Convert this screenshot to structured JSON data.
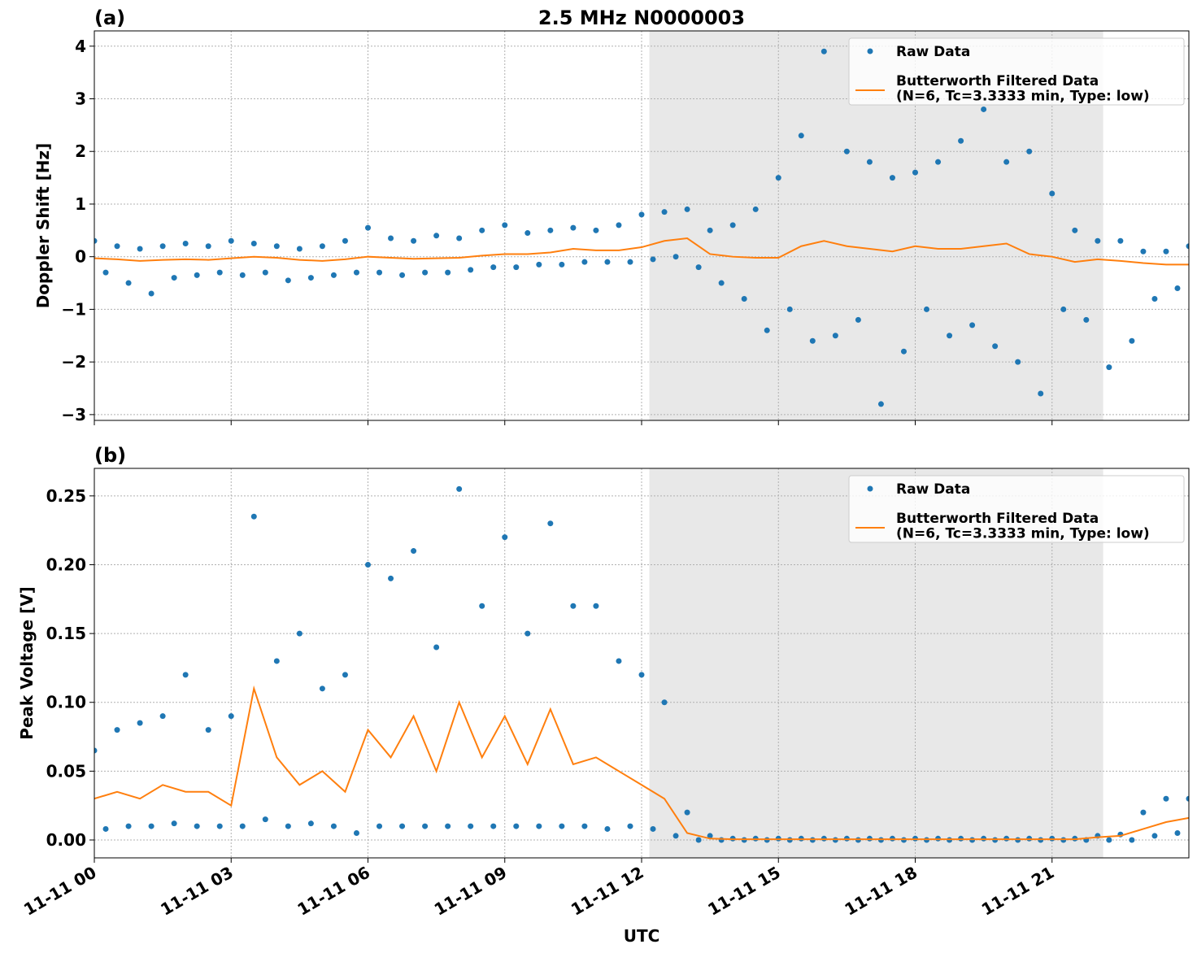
{
  "chart_data": [
    {
      "type": "line",
      "panel_label": "(a)",
      "title": "2.5 MHz N0000003",
      "ylabel": "Doppler Shift [Hz]",
      "xlim": [
        0,
        24
      ],
      "xticks": [
        0,
        3,
        6,
        9,
        12,
        15,
        18,
        21
      ],
      "ylim": [
        -3.11,
        4.29
      ],
      "yticks": [
        {
          "value": -3,
          "label": "−3"
        },
        {
          "value": -2,
          "label": "−2"
        },
        {
          "value": -1,
          "label": "−1"
        },
        0,
        1,
        2,
        3,
        4
      ],
      "grid": true,
      "legend": "upper right",
      "shaded_span": [
        12.17,
        22.12
      ],
      "shaded_color": "#e8e8e8",
      "series": [
        {
          "name": "Raw Data",
          "style": "markers",
          "color": "#1f77b4",
          "x": [
            0,
            0.25,
            0.5,
            0.75,
            1,
            1.25,
            1.5,
            1.75,
            2,
            2.25,
            2.5,
            2.75,
            3,
            3.25,
            3.5,
            3.75,
            4,
            4.25,
            4.5,
            4.75,
            5,
            5.25,
            5.5,
            5.75,
            6,
            6.25,
            6.5,
            6.75,
            7,
            7.25,
            7.5,
            7.75,
            8,
            8.25,
            8.5,
            8.75,
            9,
            9.25,
            9.5,
            9.75,
            10,
            10.25,
            10.5,
            10.75,
            11,
            11.25,
            11.5,
            11.75,
            12,
            12.25,
            12.5,
            12.75,
            13,
            13.25,
            13.5,
            13.75,
            14,
            14.25,
            14.5,
            14.75,
            15,
            15.25,
            15.5,
            15.75,
            16,
            16.25,
            16.5,
            16.75,
            17,
            17.25,
            17.5,
            17.75,
            18,
            18.25,
            18.5,
            18.75,
            19,
            19.25,
            19.5,
            19.75,
            20,
            20.25,
            20.5,
            20.75,
            21,
            21.25,
            21.5,
            21.75,
            22,
            22.25,
            22.5,
            22.75,
            23,
            23.25,
            23.5,
            23.75,
            24
          ],
          "values": [
            0.3,
            -0.3,
            0.2,
            -0.5,
            0.15,
            -0.7,
            0.2,
            -0.4,
            0.25,
            -0.35,
            0.2,
            -0.3,
            0.3,
            -0.35,
            0.25,
            -0.3,
            0.2,
            -0.45,
            0.15,
            -0.4,
            0.2,
            -0.35,
            0.3,
            -0.3,
            0.55,
            -0.3,
            0.35,
            -0.35,
            0.3,
            -0.3,
            0.4,
            -0.3,
            0.35,
            -0.25,
            0.5,
            -0.2,
            0.6,
            -0.2,
            0.45,
            -0.15,
            0.5,
            -0.15,
            0.55,
            -0.1,
            0.5,
            -0.1,
            0.6,
            -0.1,
            0.8,
            -0.05,
            0.85,
            0.0,
            0.9,
            -0.2,
            0.5,
            -0.5,
            0.6,
            -0.8,
            0.9,
            -1.4,
            1.5,
            -1.0,
            2.3,
            -1.6,
            3.9,
            -1.5,
            2.0,
            -1.2,
            1.8,
            -2.8,
            1.5,
            -1.8,
            1.6,
            -1.0,
            1.8,
            -1.5,
            2.2,
            -1.3,
            2.8,
            -1.7,
            1.8,
            -2.0,
            2.0,
            -2.6,
            1.2,
            -1.0,
            0.5,
            -1.2,
            0.3,
            -2.1,
            0.3,
            -1.6,
            0.1,
            -0.8,
            0.1,
            -0.6,
            0.2
          ]
        },
        {
          "name": "Butterworth Filtered Data\n(N=6, Tc=3.3333 min, Type: low)",
          "style": "line",
          "color": "#ff7f0e",
          "x": [
            0,
            0.5,
            1,
            1.5,
            2,
            2.5,
            3,
            3.5,
            4,
            4.5,
            5,
            5.5,
            6,
            6.5,
            7,
            7.5,
            8,
            8.5,
            9,
            9.5,
            10,
            10.5,
            11,
            11.5,
            12,
            12.5,
            13,
            13.5,
            14,
            14.5,
            15,
            15.5,
            16,
            16.5,
            17,
            17.5,
            18,
            18.5,
            19,
            19.5,
            20,
            20.5,
            21,
            21.5,
            22,
            22.5,
            23,
            23.5,
            24
          ],
          "values": [
            -0.03,
            -0.05,
            -0.08,
            -0.06,
            -0.05,
            -0.06,
            -0.03,
            0.0,
            -0.02,
            -0.06,
            -0.08,
            -0.05,
            0.0,
            -0.02,
            -0.04,
            -0.03,
            -0.02,
            0.02,
            0.05,
            0.05,
            0.08,
            0.15,
            0.12,
            0.12,
            0.18,
            0.3,
            0.35,
            0.05,
            0.0,
            -0.02,
            -0.02,
            0.2,
            0.3,
            0.2,
            0.15,
            0.1,
            0.2,
            0.15,
            0.15,
            0.2,
            0.25,
            0.05,
            0.0,
            -0.1,
            -0.05,
            -0.08,
            -0.12,
            -0.15,
            -0.15
          ]
        }
      ]
    },
    {
      "type": "line",
      "panel_label": "(b)",
      "ylabel": "Peak Voltage [V]",
      "xlabel": "UTC",
      "xlim": [
        0,
        24
      ],
      "xticks": [
        {
          "value": 0,
          "label": "11-11 00"
        },
        {
          "value": 3,
          "label": "11-11 03"
        },
        {
          "value": 6,
          "label": "11-11 06"
        },
        {
          "value": 9,
          "label": "11-11 09"
        },
        {
          "value": 12,
          "label": "11-11 12"
        },
        {
          "value": 15,
          "label": "11-11 15"
        },
        {
          "value": 18,
          "label": "11-11 18"
        },
        {
          "value": 21,
          "label": "11-11 21"
        }
      ],
      "ylim": [
        -0.013,
        0.27
      ],
      "yticks": [
        {
          "value": 0,
          "label": "0.00"
        },
        {
          "value": 0.05,
          "label": "0.05"
        },
        {
          "value": 0.1,
          "label": "0.10"
        },
        {
          "value": 0.15,
          "label": "0.15"
        },
        {
          "value": 0.2,
          "label": "0.20"
        },
        {
          "value": 0.25,
          "label": "0.25"
        }
      ],
      "grid": true,
      "legend": "upper right",
      "shaded_span": [
        12.17,
        22.12
      ],
      "shaded_color": "#e8e8e8",
      "series": [
        {
          "name": "Raw Data",
          "style": "markers",
          "color": "#1f77b4",
          "x": [
            0,
            0.25,
            0.5,
            0.75,
            1,
            1.25,
            1.5,
            1.75,
            2,
            2.25,
            2.5,
            2.75,
            3,
            3.25,
            3.5,
            3.75,
            4,
            4.25,
            4.5,
            4.75,
            5,
            5.25,
            5.5,
            5.75,
            6,
            6.25,
            6.5,
            6.75,
            7,
            7.25,
            7.5,
            7.75,
            8,
            8.25,
            8.5,
            8.75,
            9,
            9.25,
            9.5,
            9.75,
            10,
            10.25,
            10.5,
            10.75,
            11,
            11.25,
            11.5,
            11.75,
            12,
            12.25,
            12.5,
            12.75,
            13,
            13.25,
            13.5,
            13.75,
            14,
            14.25,
            14.5,
            14.75,
            15,
            15.25,
            15.5,
            15.75,
            16,
            16.25,
            16.5,
            16.75,
            17,
            17.25,
            17.5,
            17.75,
            18,
            18.25,
            18.5,
            18.75,
            19,
            19.25,
            19.5,
            19.75,
            20,
            20.25,
            20.5,
            20.75,
            21,
            21.25,
            21.5,
            21.75,
            22,
            22.25,
            22.5,
            22.75,
            23,
            23.25,
            23.5,
            23.75,
            24
          ],
          "values": [
            0.065,
            0.008,
            0.08,
            0.01,
            0.085,
            0.01,
            0.09,
            0.012,
            0.12,
            0.01,
            0.08,
            0.01,
            0.09,
            0.01,
            0.235,
            0.015,
            0.13,
            0.01,
            0.15,
            0.012,
            0.11,
            0.01,
            0.12,
            0.005,
            0.2,
            0.01,
            0.19,
            0.01,
            0.21,
            0.01,
            0.14,
            0.01,
            0.255,
            0.01,
            0.17,
            0.01,
            0.22,
            0.01,
            0.15,
            0.01,
            0.23,
            0.01,
            0.17,
            0.01,
            0.17,
            0.008,
            0.13,
            0.01,
            0.12,
            0.008,
            0.1,
            0.003,
            0.02,
            0.0,
            0.003,
            0.0,
            0.001,
            0.0,
            0.001,
            0.0,
            0.001,
            0.0,
            0.001,
            0.0,
            0.001,
            0.0,
            0.001,
            0.0,
            0.001,
            0.0,
            0.001,
            0.0,
            0.001,
            0.0,
            0.001,
            0.0,
            0.001,
            0.0,
            0.001,
            0.0,
            0.001,
            0.0,
            0.001,
            0.0,
            0.001,
            0.0,
            0.001,
            0.0,
            0.003,
            0.0,
            0.004,
            0.0,
            0.02,
            0.003,
            0.03,
            0.005,
            0.03
          ]
        },
        {
          "name": "Butterworth Filtered Data\n(N=6, Tc=3.3333 min, Type: low)",
          "style": "line",
          "color": "#ff7f0e",
          "x": [
            0,
            0.5,
            1,
            1.5,
            2,
            2.5,
            3,
            3.5,
            4,
            4.5,
            5,
            5.5,
            6,
            6.5,
            7,
            7.5,
            8,
            8.5,
            9,
            9.5,
            10,
            10.5,
            11,
            11.5,
            12,
            12.5,
            13,
            13.5,
            14,
            14.5,
            15,
            15.5,
            16,
            16.5,
            17,
            17.5,
            18,
            18.5,
            19,
            19.5,
            20,
            20.5,
            21,
            21.5,
            22,
            22.5,
            23,
            23.5,
            24
          ],
          "values": [
            0.03,
            0.035,
            0.03,
            0.04,
            0.035,
            0.035,
            0.025,
            0.11,
            0.06,
            0.04,
            0.05,
            0.035,
            0.08,
            0.06,
            0.09,
            0.05,
            0.1,
            0.06,
            0.09,
            0.055,
            0.095,
            0.055,
            0.06,
            0.05,
            0.04,
            0.03,
            0.005,
            0.001,
            0.0005,
            0.0005,
            0.0005,
            0.0005,
            0.0005,
            0.0005,
            0.0005,
            0.0005,
            0.0005,
            0.0005,
            0.0005,
            0.0005,
            0.0005,
            0.0005,
            0.0005,
            0.0005,
            0.002,
            0.003,
            0.008,
            0.013,
            0.016
          ]
        }
      ]
    }
  ]
}
